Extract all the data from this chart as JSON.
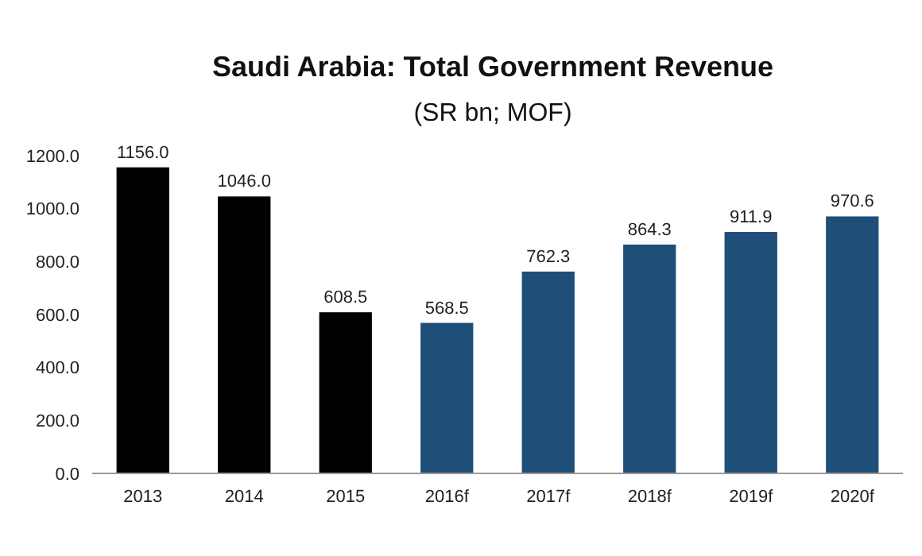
{
  "chart_data": {
    "type": "bar",
    "title": "Saudi Arabia: Total Government Revenue",
    "subtitle": "(SR bn; MOF)",
    "categories": [
      "2013",
      "2014",
      "2015",
      "2016f",
      "2017f",
      "2018f",
      "2019f",
      "2020f"
    ],
    "values": [
      1156.0,
      1046.0,
      608.5,
      568.5,
      762.3,
      864.3,
      911.9,
      970.6
    ],
    "value_labels": [
      "1156.0",
      "1046.0",
      "608.5",
      "568.5",
      "762.3",
      "864.3",
      "911.9",
      "970.6"
    ],
    "colors": [
      "#000000",
      "#000000",
      "#000000",
      "#1f4e79",
      "#1f4e79",
      "#1f4e79",
      "#1f4e79",
      "#1f4e79"
    ],
    "ylim": [
      0,
      1200
    ],
    "yticks": [
      {
        "value": 0,
        "label": "0.0"
      },
      {
        "value": 200,
        "label": "200.0"
      },
      {
        "value": 400,
        "label": "400.0"
      },
      {
        "value": 600,
        "label": "600.0"
      },
      {
        "value": 800,
        "label": "800.0"
      },
      {
        "value": 1000,
        "label": "1000.0"
      },
      {
        "value": 1200,
        "label": "1200.0"
      }
    ],
    "grid": false
  }
}
